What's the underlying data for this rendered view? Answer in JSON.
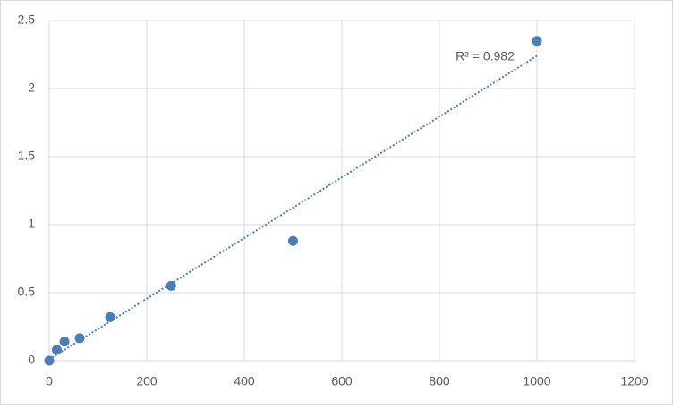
{
  "chart_data": {
    "type": "scatter",
    "series": [
      {
        "color": "#4a7ebb",
        "x": [
          0,
          15.6,
          31.25,
          62.5,
          125,
          250,
          500,
          1000
        ],
        "values": [
          0,
          0.08,
          0.14,
          0.165,
          0.32,
          0.55,
          0.88,
          2.35
        ]
      }
    ],
    "trendline": {
      "x": [
        0,
        1000
      ],
      "values": [
        0.01,
        2.24
      ],
      "color": "#4a7ebb"
    },
    "annotation": "R² = 0.982",
    "xlim": [
      0,
      1200
    ],
    "xticks": [
      0,
      200,
      400,
      600,
      800,
      1000,
      1200
    ],
    "ylim": [
      0,
      2.5
    ],
    "yticks": [
      0,
      0.5,
      1,
      1.5,
      2,
      2.5
    ],
    "grid": true
  }
}
